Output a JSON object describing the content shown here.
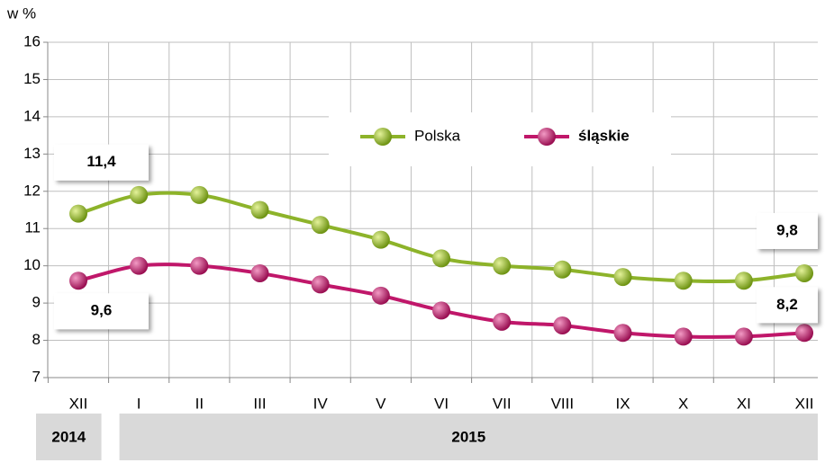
{
  "chart_data": {
    "type": "line",
    "y_axis_label": "w %",
    "categories": [
      "XII",
      "I",
      "II",
      "III",
      "IV",
      "V",
      "VI",
      "VII",
      "VIII",
      "IX",
      "X",
      "XI",
      "XII"
    ],
    "year_groups": [
      {
        "label": "2014",
        "span": 1
      },
      {
        "label": "2015",
        "span": 12
      }
    ],
    "series": [
      {
        "name": "Polska",
        "color": "#8db32a",
        "values": [
          11.4,
          11.9,
          11.9,
          11.5,
          11.1,
          10.7,
          10.2,
          10.0,
          9.9,
          9.7,
          9.6,
          9.6,
          9.8
        ],
        "value_labels": [
          "11,4",
          null,
          null,
          null,
          null,
          null,
          null,
          null,
          null,
          null,
          null,
          null,
          "9,8"
        ]
      },
      {
        "name": "śląskie",
        "color": "#c0176a",
        "values": [
          9.6,
          10.0,
          10.0,
          9.8,
          9.5,
          9.2,
          8.8,
          8.5,
          8.4,
          8.2,
          8.1,
          8.1,
          8.2
        ],
        "value_labels": [
          "9,6",
          null,
          null,
          null,
          null,
          null,
          null,
          null,
          null,
          null,
          null,
          null,
          "8,2"
        ]
      }
    ],
    "ylim": [
      7,
      16
    ],
    "yticks": [
      7,
      8,
      9,
      10,
      11,
      12,
      13,
      14,
      15,
      16
    ],
    "grid": true,
    "legend": "top"
  }
}
